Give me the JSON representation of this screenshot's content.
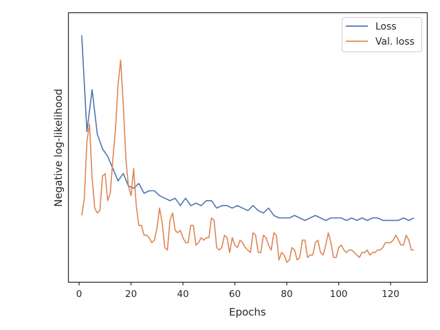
{
  "chart_data": {
    "type": "line",
    "xlabel": "Epochs",
    "ylabel": "Negative log-likelihood",
    "xlim": [
      -4,
      134
    ],
    "ylim": [
      0,
      100
    ],
    "x_ticks": [
      0,
      20,
      40,
      60,
      80,
      100,
      120
    ],
    "y_ticks_visible": false,
    "grid": false,
    "legend_position": "top-right",
    "series": [
      {
        "name": "Loss",
        "color": "#4c72b0",
        "x": [
          1,
          3,
          5,
          7,
          9,
          11,
          13,
          15,
          17,
          19,
          21,
          23,
          25,
          27,
          29,
          31,
          33,
          35,
          37,
          39,
          41,
          43,
          45,
          47,
          49,
          51,
          53,
          55,
          57,
          59,
          61,
          63,
          65,
          67,
          69,
          71,
          73,
          75,
          77,
          79,
          81,
          83,
          85,
          87,
          89,
          91,
          93,
          95,
          97,
          99,
          101,
          103,
          105,
          107,
          109,
          111,
          113,
          115,
          117,
          119,
          121,
          123,
          125,
          127,
          129
        ],
        "values": [
          96,
          57,
          74,
          56,
          50,
          47,
          42,
          37,
          40,
          35,
          34,
          36,
          32,
          33,
          33,
          31,
          30,
          29,
          30,
          27,
          30,
          27,
          28,
          27,
          29,
          29,
          26,
          27,
          27,
          26,
          27,
          26,
          25,
          27,
          25,
          24,
          26,
          23,
          22,
          22,
          22,
          23,
          22,
          21,
          22,
          23,
          22,
          21,
          22,
          22,
          22,
          21,
          22,
          21,
          22,
          21,
          22,
          22,
          21,
          21,
          21,
          21,
          22,
          21,
          22
        ]
      },
      {
        "name": "Val. loss",
        "color": "#dd8452",
        "x": [
          1,
          2,
          3,
          4,
          5,
          6,
          7,
          8,
          9,
          10,
          11,
          12,
          13,
          14,
          15,
          16,
          17,
          18,
          19,
          20,
          21,
          22,
          23,
          24,
          25,
          26,
          27,
          28,
          29,
          30,
          31,
          32,
          33,
          34,
          35,
          36,
          37,
          38,
          39,
          40,
          41,
          42,
          43,
          44,
          45,
          46,
          47,
          48,
          49,
          50,
          51,
          52,
          53,
          54,
          55,
          56,
          57,
          58,
          59,
          60,
          61,
          62,
          63,
          64,
          65,
          66,
          67,
          68,
          69,
          70,
          71,
          72,
          73,
          74,
          75,
          76,
          77,
          78,
          79,
          80,
          81,
          82,
          83,
          84,
          85,
          86,
          87,
          88,
          89,
          90,
          91,
          92,
          93,
          94,
          95,
          96,
          97,
          98,
          99,
          100,
          101,
          102,
          103,
          104,
          105,
          106,
          107,
          108,
          109,
          110,
          111,
          112,
          113,
          114,
          115,
          116,
          117,
          118,
          119,
          120,
          121,
          122,
          123,
          124,
          125,
          126,
          127,
          128,
          129
        ],
        "values": [
          23,
          30,
          53,
          60,
          38,
          26,
          24,
          25,
          39,
          40,
          29,
          32,
          46,
          58,
          76,
          86,
          68,
          46,
          35,
          31,
          42,
          27,
          19,
          19,
          15,
          15,
          14,
          12,
          13,
          18,
          26,
          20,
          10,
          9,
          21,
          24,
          17,
          16,
          17,
          14,
          12,
          12,
          19,
          19,
          11,
          12,
          14,
          13,
          14,
          14,
          22,
          21,
          10,
          9,
          10,
          15,
          14,
          8,
          14,
          11,
          10,
          13,
          12,
          10,
          9,
          8,
          16,
          15,
          8,
          8,
          15,
          14,
          11,
          9,
          16,
          15,
          5,
          8,
          7,
          4,
          5,
          10,
          9,
          5,
          6,
          13,
          13,
          6,
          7,
          7,
          12,
          13,
          8,
          7,
          11,
          16,
          12,
          6,
          6,
          10,
          11,
          9,
          8,
          9,
          9,
          8,
          7,
          6,
          8,
          8,
          9,
          7,
          8,
          8,
          9,
          9,
          10,
          12,
          12,
          12,
          13,
          15,
          13,
          11,
          11,
          15,
          13,
          9,
          9
        ]
      }
    ]
  }
}
